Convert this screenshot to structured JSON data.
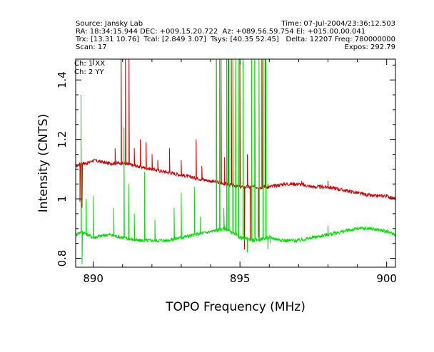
{
  "header": {
    "source": "Source: Jansky Lab",
    "time": "Time: 07-Jul-2004/23:36:12.503",
    "coords": "RA: 18:34:15.944 DEC: +009.15.20.722  Az: +089.56.59.754 El: +015.00.00.041",
    "trx": "Trx: [13.31 10.76]  Tcal: [2.849 3.07]  Tsys: [40.35 52.45]",
    "freq_line": "Delta: 12207 Freq: 780000000",
    "scan": "Scan: 17",
    "expos": "Expos: 292.79"
  },
  "colors": {
    "ch1": "#cc0000",
    "ch2": "#00dd00",
    "axis": "#000000"
  },
  "chart_data": {
    "type": "line",
    "xlabel": "TOPO Frequency (MHz)",
    "ylabel": "Intensity (CNTS)",
    "xlim": [
      889.4,
      900.3
    ],
    "ylim": [
      0.77,
      1.47
    ],
    "x_ticks": [
      890,
      895,
      900
    ],
    "y_ticks": [
      0.8,
      1.0,
      1.2,
      1.4
    ],
    "x_tick_labels": [
      "890",
      "895",
      "900"
    ],
    "y_tick_labels": [
      "0.8",
      "1",
      "1.2",
      "1.4"
    ],
    "legend_position": "top-left",
    "series": [
      {
        "name": "Ch: 1  XX",
        "color": "#cc0000",
        "x": [
          889.4,
          889.6,
          889.8,
          890.0,
          890.5,
          891.0,
          891.5,
          892.0,
          892.5,
          893.0,
          893.5,
          894.0,
          894.5,
          895.0,
          895.5,
          896.0,
          896.5,
          897.0,
          897.5,
          898.0,
          898.5,
          899.0,
          899.5,
          900.0,
          900.3
        ],
        "y": [
          1.11,
          1.12,
          1.12,
          1.13,
          1.12,
          1.12,
          1.11,
          1.1,
          1.09,
          1.08,
          1.07,
          1.06,
          1.05,
          1.04,
          1.04,
          1.04,
          1.05,
          1.05,
          1.04,
          1.04,
          1.03,
          1.02,
          1.01,
          1.01,
          1.0
        ],
        "spikes": [
          [
            889.55,
            0.99
          ],
          [
            889.62,
            0.97
          ],
          [
            890.75,
            1.17
          ],
          [
            890.95,
            1.5
          ],
          [
            891.1,
            1.5
          ],
          [
            891.22,
            1.5
          ],
          [
            891.4,
            1.17
          ],
          [
            891.6,
            1.2
          ],
          [
            891.8,
            1.19
          ],
          [
            892.0,
            1.15
          ],
          [
            892.2,
            1.13
          ],
          [
            892.6,
            1.17
          ],
          [
            893.0,
            1.13
          ],
          [
            893.5,
            1.2
          ],
          [
            893.7,
            1.11
          ],
          [
            894.2,
            1.5
          ],
          [
            894.35,
            1.5
          ],
          [
            894.48,
            1.14
          ],
          [
            894.6,
            1.5
          ],
          [
            894.7,
            1.5
          ],
          [
            894.85,
            1.5
          ],
          [
            895.0,
            1.5
          ],
          [
            895.15,
            0.83
          ],
          [
            895.25,
            1.15
          ],
          [
            895.35,
            0.86
          ],
          [
            895.5,
            1.5
          ],
          [
            895.62,
            0.87
          ],
          [
            895.75,
            1.5
          ],
          [
            895.85,
            1.5
          ],
          [
            895.95,
            1.05
          ],
          [
            897.1,
            1.06
          ],
          [
            898.0,
            1.06
          ]
        ]
      },
      {
        "name": "Ch: 2  YY",
        "color": "#00dd00",
        "x": [
          889.4,
          889.6,
          889.8,
          890.0,
          890.5,
          891.0,
          891.5,
          892.0,
          892.5,
          893.0,
          893.5,
          894.0,
          894.5,
          895.0,
          895.5,
          896.0,
          896.5,
          897.0,
          897.5,
          898.0,
          898.5,
          899.0,
          899.5,
          900.0,
          900.3
        ],
        "y": [
          0.88,
          0.89,
          0.88,
          0.87,
          0.88,
          0.87,
          0.86,
          0.86,
          0.86,
          0.87,
          0.88,
          0.89,
          0.9,
          0.87,
          0.86,
          0.87,
          0.86,
          0.86,
          0.87,
          0.88,
          0.89,
          0.9,
          0.9,
          0.89,
          0.88
        ],
        "spikes": [
          [
            889.58,
            1.35
          ],
          [
            889.62,
            0.78
          ],
          [
            889.75,
            1.0
          ],
          [
            890.0,
            1.01
          ],
          [
            890.7,
            0.97
          ],
          [
            891.05,
            1.24
          ],
          [
            891.2,
            1.05
          ],
          [
            891.4,
            0.95
          ],
          [
            891.75,
            1.09
          ],
          [
            892.1,
            0.93
          ],
          [
            892.75,
            0.97
          ],
          [
            893.0,
            1.02
          ],
          [
            893.45,
            1.04
          ],
          [
            893.65,
            0.94
          ],
          [
            894.2,
            1.5
          ],
          [
            894.3,
            1.5
          ],
          [
            894.45,
            0.97
          ],
          [
            894.55,
            1.5
          ],
          [
            894.62,
            1.5
          ],
          [
            894.75,
            1.5
          ],
          [
            894.85,
            1.5
          ],
          [
            894.95,
            1.5
          ],
          [
            895.1,
            1.5
          ],
          [
            895.25,
            0.82
          ],
          [
            895.4,
            1.5
          ],
          [
            895.5,
            1.5
          ],
          [
            895.65,
            1.5
          ],
          [
            895.78,
            1.5
          ],
          [
            895.88,
            1.5
          ],
          [
            895.95,
            0.83
          ],
          [
            896.05,
            0.85
          ],
          [
            898.0,
            0.91
          ]
        ]
      }
    ]
  }
}
